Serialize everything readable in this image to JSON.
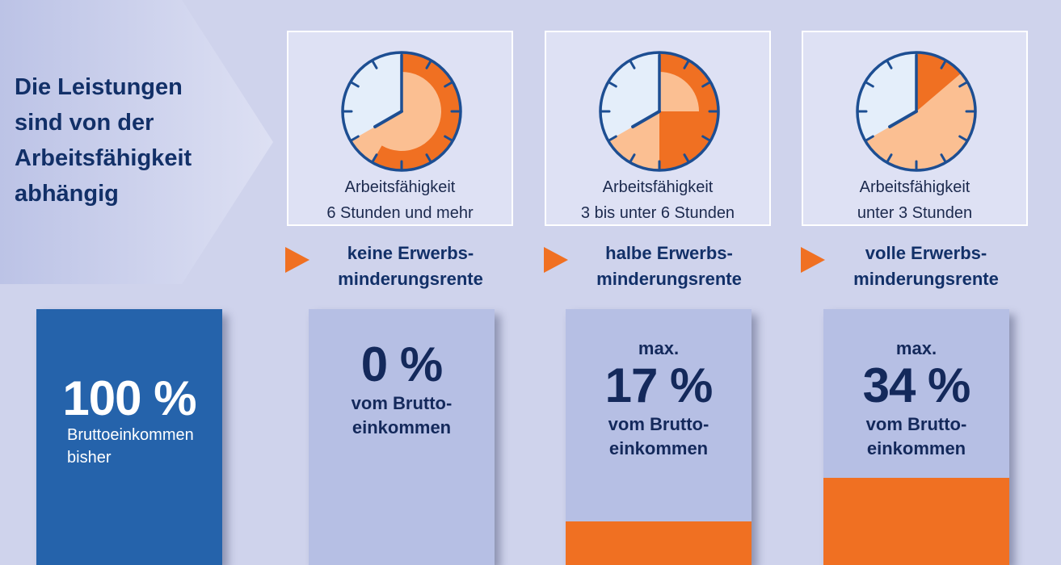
{
  "headline": "Die Leistungen\nsind von der\nArbeitsfähigkeit\nabhängig",
  "colors": {
    "navy": "#123068",
    "blue_bar": "#2563ab",
    "bar_light": "#b6bfe4",
    "orange": "#f07022",
    "peach": "#fbbf92",
    "clock_face": "#e4eefa",
    "clock_rim": "#1d4e92"
  },
  "scenarios": [
    {
      "caption_line1": "Arbeitsfähigkeit",
      "caption_line2": "6 Stunden und mehr",
      "result_line1": "keine Erwerbs-",
      "result_line2": "minderungsrente",
      "prefix": "",
      "percent": "0 %",
      "unit_line1": "vom Brutto-",
      "unit_line2": "einkommen",
      "percent_value": 0,
      "hours_min": 6,
      "hours_max": null
    },
    {
      "caption_line1": "Arbeitsfähigkeit",
      "caption_line2": "3 bis unter 6 Stunden",
      "result_line1": "halbe Erwerbs-",
      "result_line2": "minderungsrente",
      "prefix": "max.",
      "percent": "17 %",
      "unit_line1": "vom Brutto-",
      "unit_line2": "einkommen",
      "percent_value": 17,
      "hours_min": 3,
      "hours_max": 6
    },
    {
      "caption_line1": "Arbeitsfähigkeit",
      "caption_line2": "unter 3 Stunden",
      "result_line1": "volle Erwerbs-",
      "result_line2": "minderungsrente",
      "prefix": "max.",
      "percent": "34 %",
      "unit_line1": "vom Brutto-",
      "unit_line2": "einkommen",
      "percent_value": 34,
      "hours_min": 0,
      "hours_max": 3
    }
  ],
  "reference": {
    "percent": "100 %",
    "label_line1": "Bruttoeinkommen",
    "label_line2": "bisher",
    "percent_value": 100
  }
}
